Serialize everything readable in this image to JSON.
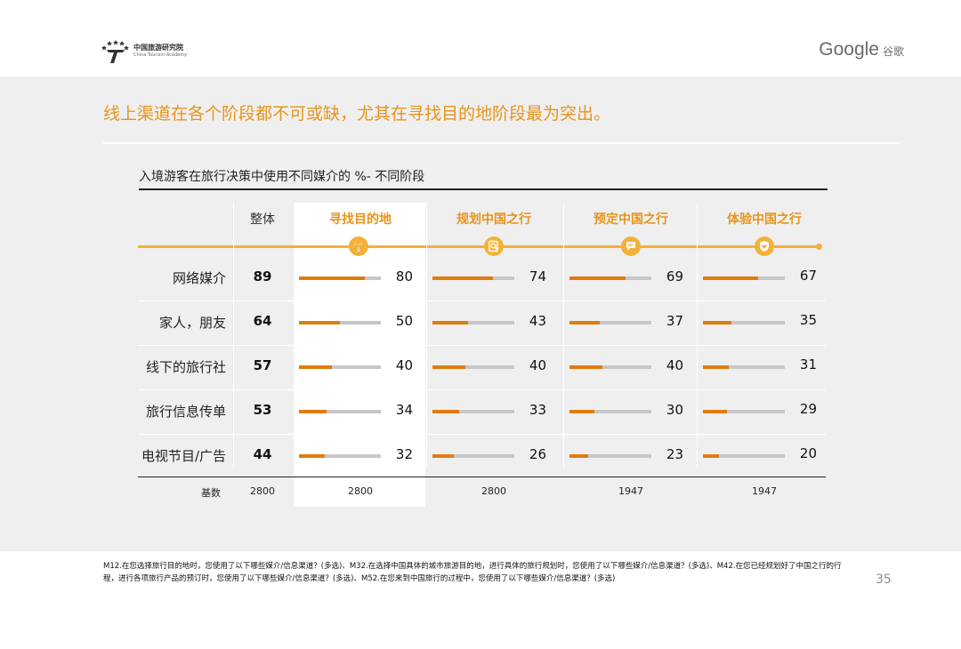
{
  "header": {
    "org_name_cn": "中国旅游研究院",
    "org_name_en": "China Tourism Academy",
    "brand_word": "Google",
    "brand_cn": "谷歌"
  },
  "headline": "线上渠道在各个阶段都不可或缺，尤其在寻找目的地阶段最为突出。",
  "chart_data": {
    "type": "bar",
    "title": "入境游客在旅行决策中使用不同媒介的 %- 不同阶段",
    "overall_label": "整体",
    "categories": [
      "网络媒介",
      "家人，朋友",
      "线下的旅行社",
      "旅行信息传单",
      "电视节目/广告"
    ],
    "overall": [
      89,
      64,
      57,
      53,
      44
    ],
    "series": [
      {
        "name": "寻找目的地",
        "icon": "palm-tree-icon",
        "values": [
          80,
          50,
          40,
          34,
          32
        ],
        "base": "2800"
      },
      {
        "name": "规划中国之行",
        "icon": "search-doc-icon",
        "values": [
          74,
          43,
          40,
          33,
          26
        ],
        "base": "2800"
      },
      {
        "name": "预定中国之行",
        "icon": "chat-icon",
        "values": [
          69,
          37,
          40,
          30,
          23
        ],
        "base": "1947"
      },
      {
        "name": "体验中国之行",
        "icon": "shield-heart-icon",
        "values": [
          67,
          35,
          31,
          29,
          20
        ],
        "base": "1947"
      }
    ],
    "base_label": "基数",
    "overall_base": "2800",
    "ylim": [
      0,
      100
    ],
    "accent": "#e8941a",
    "bar_color": "#e07c0e",
    "track_color": "#c7c7c7"
  },
  "footnote": "M12.在您选择旅行目的地时，您使用了以下哪些媒介/信息渠道？(多选)、M32.在选择中国具体的城市旅游目的地，进行具体的旅行规划时，您使用了以下哪些媒介/信息渠道？(多选)、M42.在您已经规划好了中国之行的行程，进行各项旅行产品的预订时，您使用了以下哪些媒介/信息渠道？(多选)、M52.在您来到中国旅行的过程中，您使用了以下哪些媒介/信息渠道？(多选)",
  "page_number": "35"
}
